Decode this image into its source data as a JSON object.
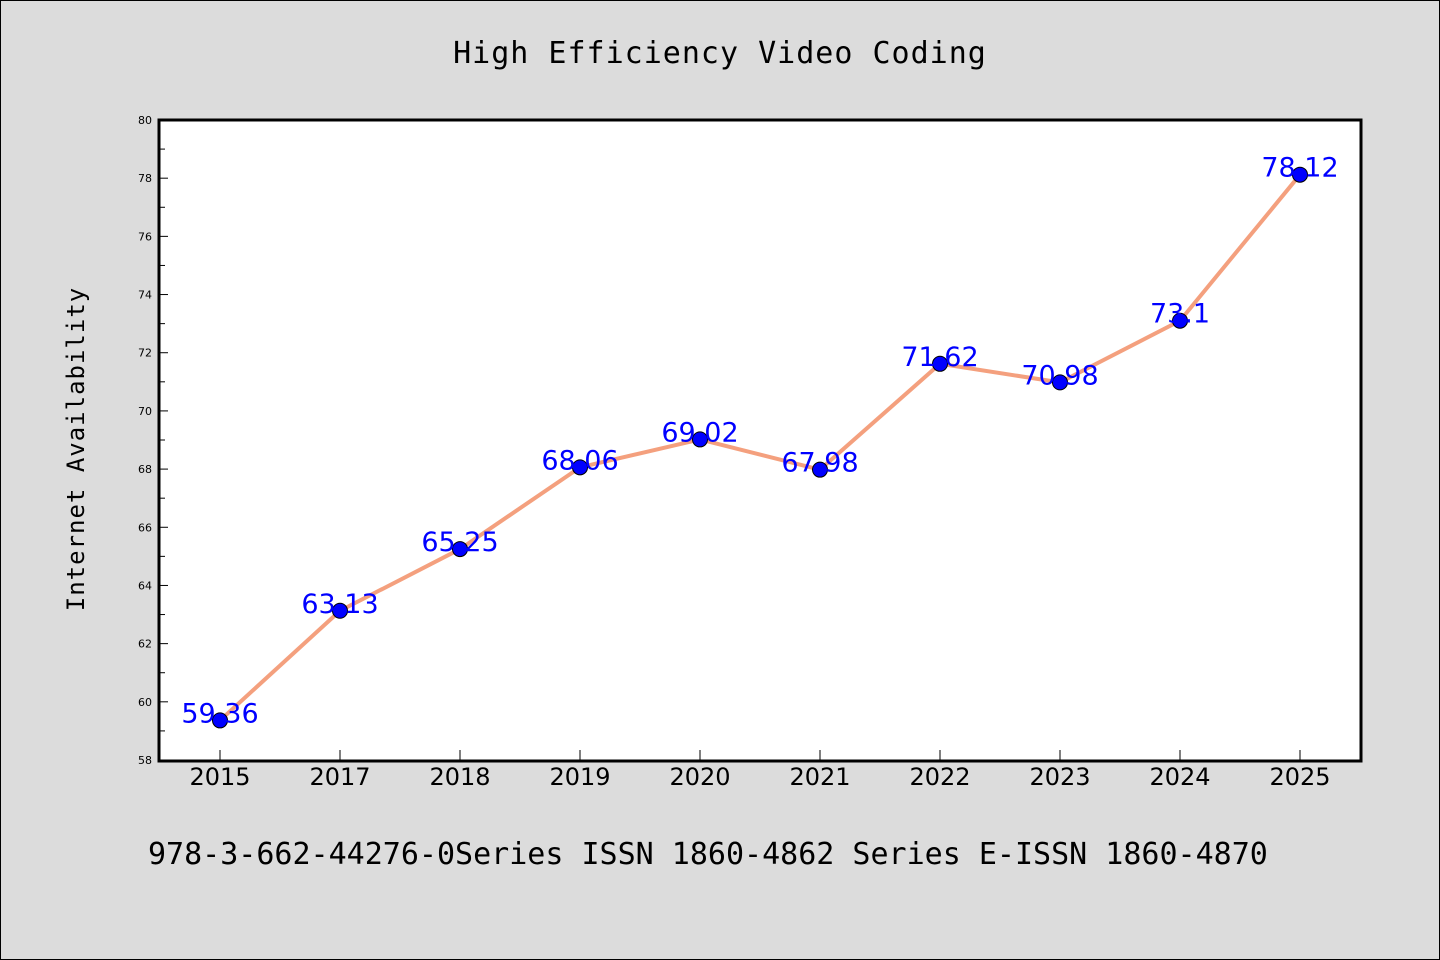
{
  "chart_data": {
    "type": "line",
    "title": "High Efficiency Video Coding",
    "xlabel": "",
    "ylabel": "Internet Availability",
    "categories": [
      "2015",
      "2017",
      "2018",
      "2019",
      "2020",
      "2021",
      "2022",
      "2023",
      "2024",
      "2025"
    ],
    "series": [
      {
        "values": [
          59.36,
          63.13,
          65.25,
          68.06,
          69.02,
          67.98,
          71.62,
          70.98,
          73.1,
          78.12
        ],
        "data_labels": [
          "59.36",
          "63.13",
          "65.25",
          "68.06",
          "69.02",
          "67.98",
          "71.62",
          "70.98",
          "73.1",
          "78.12"
        ],
        "line_color": "#f4a07e",
        "marker_color": "#0000ff",
        "label_color": "#0000ff"
      }
    ],
    "ylim": [
      58,
      80
    ],
    "yticks": [
      "58",
      "60",
      "62",
      "64",
      "66",
      "68",
      "70",
      "72",
      "74",
      "76",
      "78",
      "80"
    ],
    "grid": false,
    "footer": "978-3-662-44276-0Series ISSN 1860-4862 Series E-ISSN 1860-4870",
    "colors": {
      "background": "#dcdcdc",
      "plot_background": "#ffffff",
      "axes": "#000000"
    }
  }
}
